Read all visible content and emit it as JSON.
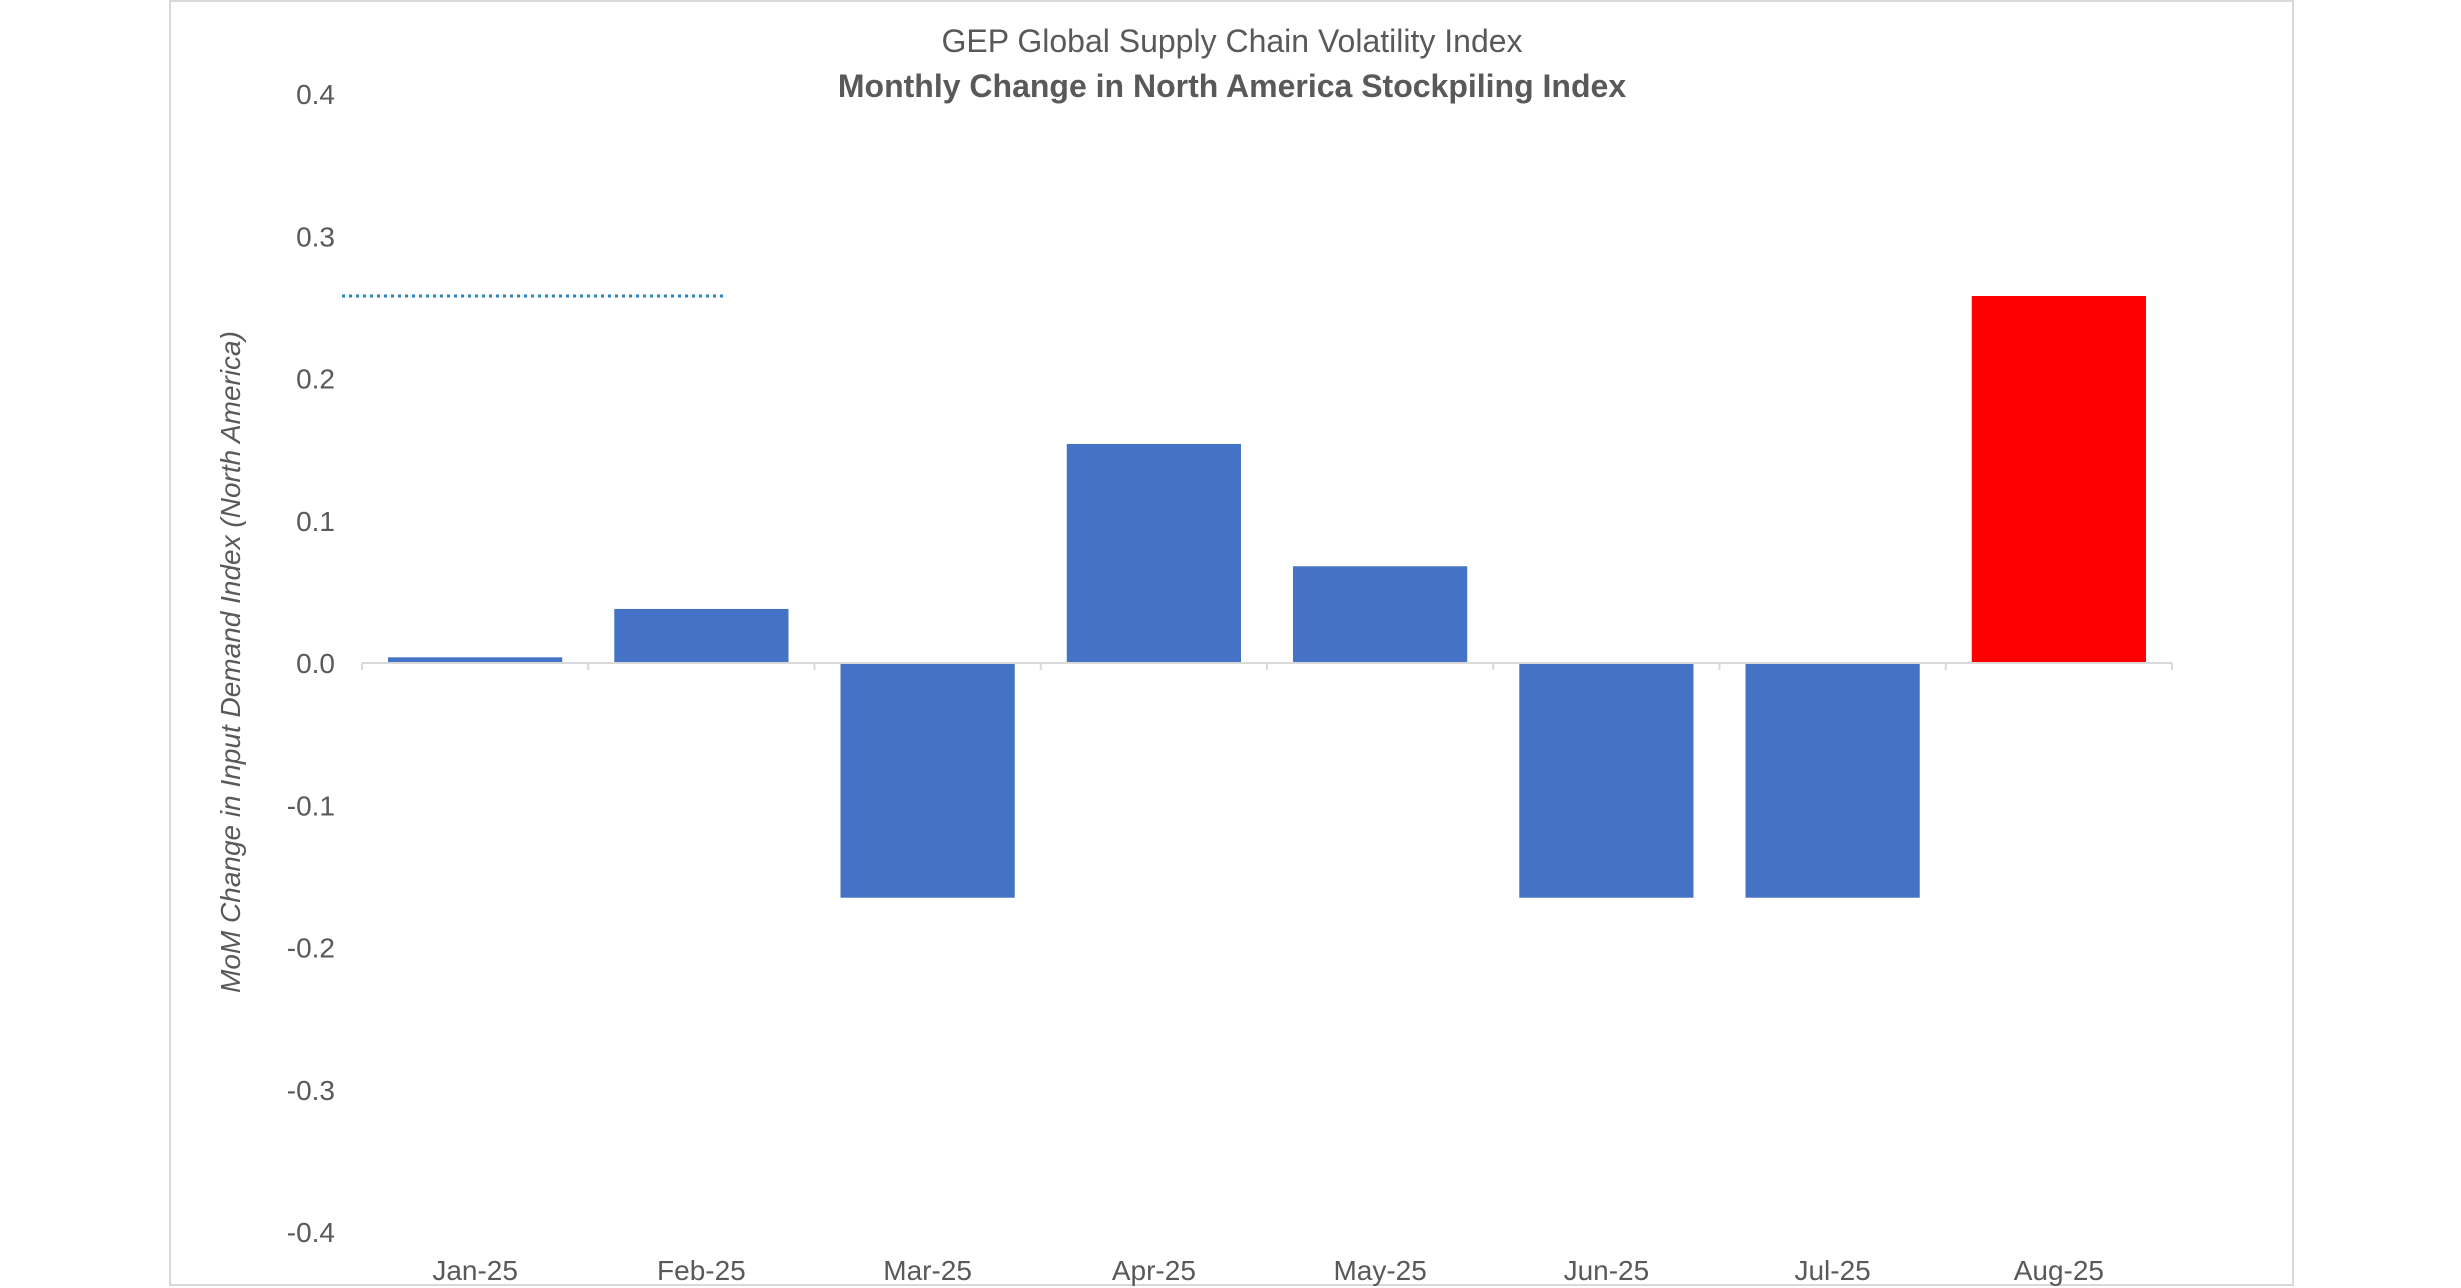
{
  "chart_data": {
    "type": "bar",
    "title": "GEP Global Supply Chain Volatility Index",
    "subtitle": "Monthly Change in North America Stockpiling Index",
    "xlabel": "",
    "ylabel": "MoM Change in Input Demand Index (North America)",
    "categories": [
      "Jan-25",
      "Feb-25",
      "Mar-25",
      "Apr-25",
      "May-25",
      "Jun-25",
      "Jul-25",
      "Aug-25"
    ],
    "values": [
      0.004,
      0.038,
      -0.165,
      0.154,
      0.068,
      -0.165,
      -0.165,
      0.258
    ],
    "bar_colors": [
      "#4472c4",
      "#4472c4",
      "#4472c4",
      "#4472c4",
      "#4472c4",
      "#4472c4",
      "#4472c4",
      "#ff0000"
    ],
    "reference_line": {
      "value": 0.258,
      "color": "#2e86c1",
      "style": "dotted",
      "from_category": "Jan-25",
      "to_category": "Feb-25"
    },
    "ylim": [
      -0.4,
      0.4
    ],
    "yticks": [
      "0.4",
      "0.3",
      "0.2",
      "0.1",
      "0.0",
      "-0.1",
      "-0.2",
      "-0.3",
      "-0.4"
    ],
    "ytick_values": [
      0.4,
      0.3,
      0.2,
      0.1,
      0.0,
      -0.1,
      -0.2,
      -0.3,
      -0.4
    ],
    "grid": false,
    "legend": "none"
  }
}
